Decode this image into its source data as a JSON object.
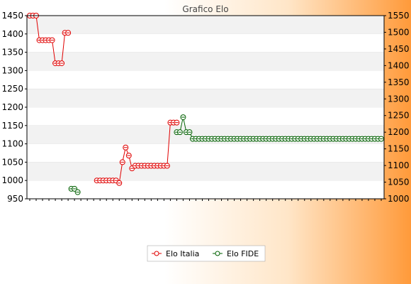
{
  "chart_data": {
    "type": "line",
    "title": "Grafico Elo",
    "xlabel": "",
    "ylabel_left": "",
    "ylabel_right": "",
    "left_axis": {
      "min": 950,
      "max": 1450,
      "ticks": [
        950,
        1000,
        1050,
        1100,
        1150,
        1200,
        1250,
        1300,
        1350,
        1400,
        1450
      ]
    },
    "right_axis": {
      "min": 1000,
      "max": 1550,
      "ticks": [
        1000,
        1050,
        1100,
        1150,
        1200,
        1250,
        1300,
        1350,
        1400,
        1450,
        1500,
        1550
      ]
    },
    "grid": "horizontal-bands",
    "legend_position": "bottom",
    "series": [
      {
        "name": "Elo Italia",
        "axis": "left",
        "color": "#e00000",
        "values": [
          1450,
          1450,
          1450,
          1383,
          1383,
          1383,
          1383,
          1383,
          1320,
          1320,
          1320,
          1403,
          1403,
          null,
          null,
          null,
          null,
          null,
          null,
          null,
          null,
          1000,
          1000,
          1000,
          1000,
          1000,
          1000,
          1000,
          993,
          1050,
          1090,
          1068,
          1033,
          1040,
          1040,
          1040,
          1040,
          1040,
          1040,
          1040,
          1040,
          1040,
          1040,
          1040,
          1158,
          1158,
          1158
        ]
      },
      {
        "name": "Elo FIDE",
        "axis": "right",
        "color": "#006000",
        "values": [
          null,
          null,
          null,
          null,
          null,
          null,
          null,
          null,
          null,
          null,
          null,
          null,
          null,
          1030,
          1030,
          1020,
          null,
          null,
          null,
          null,
          null,
          null,
          null,
          null,
          null,
          null,
          null,
          null,
          null,
          null,
          null,
          null,
          null,
          null,
          null,
          null,
          null,
          null,
          null,
          null,
          null,
          null,
          null,
          null,
          null,
          null,
          1200,
          1200,
          1245,
          1200,
          1200,
          1180,
          1180,
          1180,
          1180,
          1180,
          1180,
          1180,
          1180,
          1180,
          1180,
          1180,
          1180,
          1180,
          1180,
          1180,
          1180,
          1180,
          1180,
          1180,
          1180,
          1180,
          1180,
          1180,
          1180,
          1180,
          1180,
          1180,
          1180,
          1180,
          1180,
          1180,
          1180,
          1180,
          1180,
          1180,
          1180,
          1180,
          1180,
          1180,
          1180,
          1180,
          1180,
          1180,
          1180,
          1180,
          1180,
          1180,
          1180,
          1180,
          1180,
          1180,
          1180,
          1180,
          1180,
          1180,
          1180,
          1180,
          1180,
          1180,
          1180
        ]
      }
    ]
  },
  "colors": {
    "band": "#f2f2f2",
    "axis": "#000000",
    "grid": "#dddddd"
  }
}
